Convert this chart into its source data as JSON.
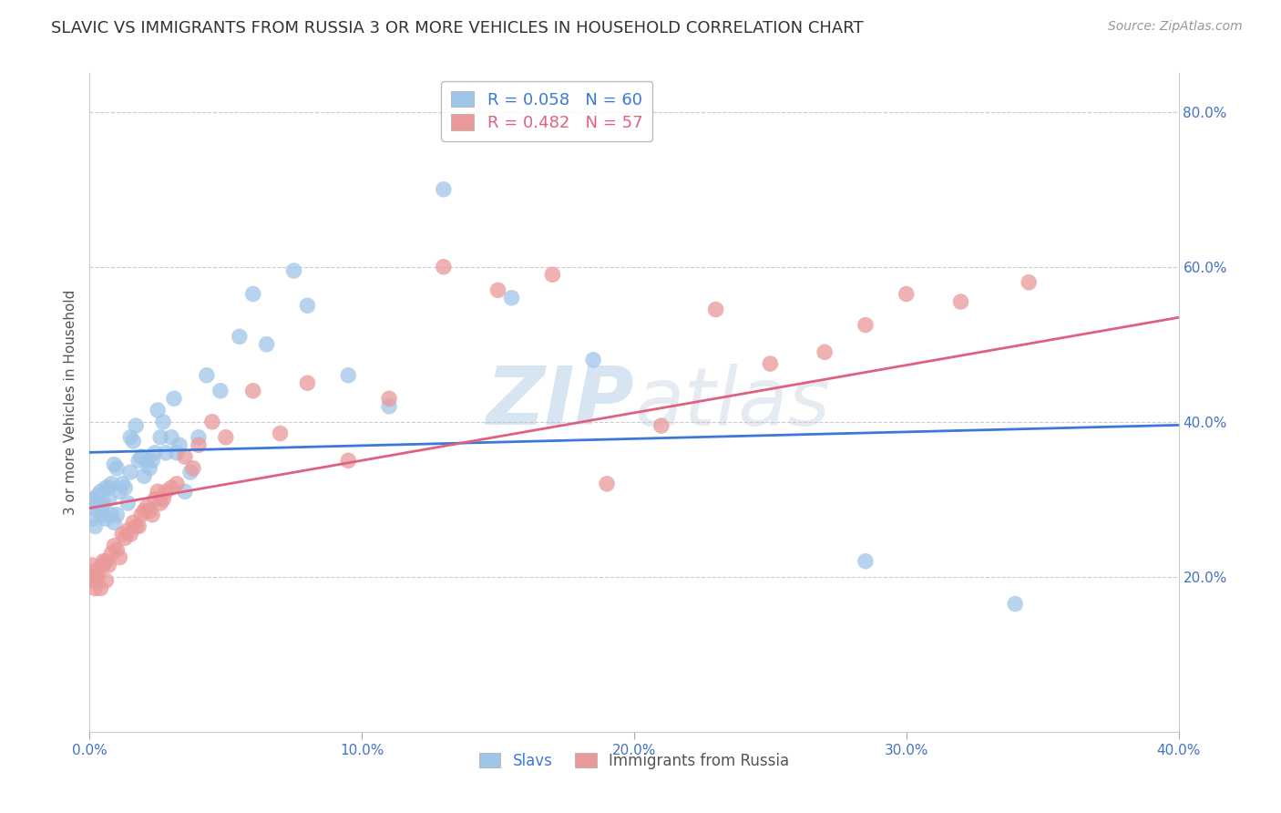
{
  "title": "SLAVIC VS IMMIGRANTS FROM RUSSIA 3 OR MORE VEHICLES IN HOUSEHOLD CORRELATION CHART",
  "source": "Source: ZipAtlas.com",
  "ylabel": "3 or more Vehicles in Household",
  "watermark_zip": "ZIP",
  "watermark_atlas": "atlas",
  "x_min": 0.0,
  "x_max": 0.4,
  "y_min": 0.0,
  "y_max": 0.85,
  "x_ticks": [
    0.0,
    0.1,
    0.2,
    0.3,
    0.4
  ],
  "x_tick_labels": [
    "0.0%",
    "10.0%",
    "20.0%",
    "30.0%",
    "40.0%"
  ],
  "y_ticks_right": [
    0.2,
    0.4,
    0.6,
    0.8
  ],
  "y_tick_labels_right": [
    "20.0%",
    "40.0%",
    "60.0%",
    "80.0%"
  ],
  "slavs_color": "#9fc5e8",
  "russia_color": "#ea9999",
  "slavs_line_color": "#3c78d8",
  "russia_line_color": "#e06080",
  "legend_r_slavs": "R = 0.058",
  "legend_n_slavs": "N = 60",
  "legend_r_russia": "R = 0.482",
  "legend_n_russia": "N = 57",
  "slavs_x": [
    0.001,
    0.001,
    0.002,
    0.002,
    0.003,
    0.003,
    0.004,
    0.004,
    0.005,
    0.005,
    0.006,
    0.006,
    0.007,
    0.007,
    0.008,
    0.008,
    0.009,
    0.009,
    0.01,
    0.01,
    0.011,
    0.012,
    0.013,
    0.014,
    0.015,
    0.015,
    0.016,
    0.017,
    0.018,
    0.019,
    0.02,
    0.021,
    0.022,
    0.023,
    0.024,
    0.025,
    0.026,
    0.027,
    0.028,
    0.03,
    0.031,
    0.032,
    0.033,
    0.035,
    0.037,
    0.04,
    0.043,
    0.048,
    0.055,
    0.06,
    0.065,
    0.075,
    0.08,
    0.095,
    0.11,
    0.13,
    0.155,
    0.185,
    0.285,
    0.34
  ],
  "slavs_y": [
    0.275,
    0.3,
    0.265,
    0.295,
    0.285,
    0.305,
    0.29,
    0.31,
    0.28,
    0.295,
    0.275,
    0.315,
    0.3,
    0.315,
    0.28,
    0.32,
    0.27,
    0.345,
    0.28,
    0.34,
    0.31,
    0.32,
    0.315,
    0.295,
    0.38,
    0.335,
    0.375,
    0.395,
    0.35,
    0.355,
    0.33,
    0.35,
    0.34,
    0.35,
    0.36,
    0.415,
    0.38,
    0.4,
    0.36,
    0.38,
    0.43,
    0.36,
    0.37,
    0.31,
    0.335,
    0.38,
    0.46,
    0.44,
    0.51,
    0.565,
    0.5,
    0.595,
    0.55,
    0.46,
    0.42,
    0.7,
    0.56,
    0.48,
    0.22,
    0.165
  ],
  "russia_x": [
    0.001,
    0.001,
    0.002,
    0.002,
    0.003,
    0.003,
    0.004,
    0.005,
    0.005,
    0.006,
    0.006,
    0.007,
    0.008,
    0.009,
    0.01,
    0.011,
    0.012,
    0.013,
    0.014,
    0.015,
    0.016,
    0.017,
    0.018,
    0.019,
    0.02,
    0.021,
    0.022,
    0.023,
    0.024,
    0.025,
    0.026,
    0.027,
    0.028,
    0.03,
    0.032,
    0.035,
    0.038,
    0.04,
    0.045,
    0.05,
    0.06,
    0.07,
    0.08,
    0.095,
    0.11,
    0.13,
    0.15,
    0.17,
    0.19,
    0.21,
    0.23,
    0.25,
    0.27,
    0.285,
    0.3,
    0.32,
    0.345
  ],
  "russia_y": [
    0.195,
    0.215,
    0.185,
    0.2,
    0.2,
    0.21,
    0.185,
    0.215,
    0.22,
    0.195,
    0.22,
    0.215,
    0.23,
    0.24,
    0.235,
    0.225,
    0.255,
    0.25,
    0.26,
    0.255,
    0.27,
    0.265,
    0.265,
    0.28,
    0.285,
    0.29,
    0.285,
    0.28,
    0.3,
    0.31,
    0.295,
    0.3,
    0.31,
    0.315,
    0.32,
    0.355,
    0.34,
    0.37,
    0.4,
    0.38,
    0.44,
    0.385,
    0.45,
    0.35,
    0.43,
    0.6,
    0.57,
    0.59,
    0.32,
    0.395,
    0.545,
    0.475,
    0.49,
    0.525,
    0.565,
    0.555,
    0.58
  ],
  "background_color": "#ffffff",
  "grid_color": "#cccccc",
  "tick_color": "#4472c4"
}
